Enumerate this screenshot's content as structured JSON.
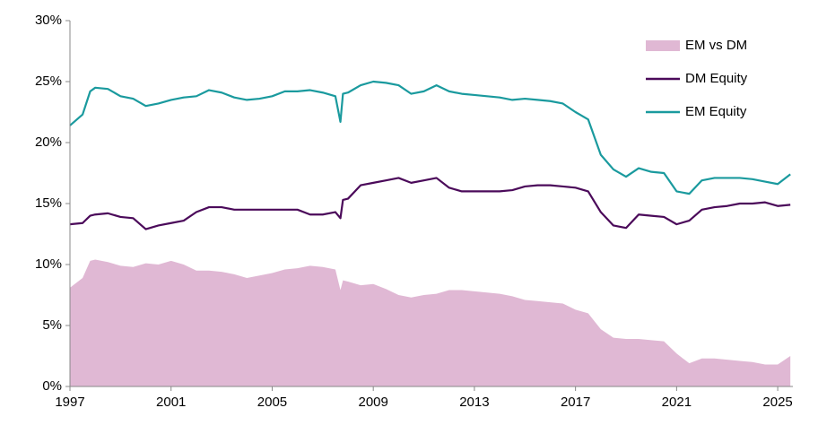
{
  "chart_data": {
    "type": "line",
    "x": [
      1997,
      1997.5,
      1997.8,
      1998,
      1998.5,
      1999,
      1999.5,
      2000,
      2000.5,
      2001,
      2001.5,
      2002,
      2002.5,
      2003,
      2003.5,
      2004,
      2004.5,
      2005,
      2005.5,
      2006,
      2006.5,
      2007,
      2007.5,
      2007.7,
      2007.8,
      2008,
      2008.5,
      2009,
      2009.5,
      2010,
      2010.5,
      2011,
      2011.5,
      2012,
      2012.5,
      2013,
      2013.5,
      2014,
      2014.5,
      2015,
      2015.5,
      2016,
      2016.5,
      2017,
      2017.5,
      2018,
      2018.5,
      2019,
      2019.5,
      2020,
      2020.5,
      2021,
      2021.5,
      2022,
      2022.5,
      2023,
      2023.5,
      2024,
      2024.5,
      2025,
      2025.5
    ],
    "series": [
      {
        "name": "EM vs DM",
        "type": "area",
        "color": "#e0b8d4",
        "values": [
          8.1,
          8.9,
          10.3,
          10.4,
          10.2,
          9.9,
          9.8,
          10.1,
          10.0,
          10.3,
          10.0,
          9.5,
          9.5,
          9.4,
          9.2,
          8.9,
          9.1,
          9.3,
          9.6,
          9.7,
          9.9,
          9.8,
          9.6,
          7.9,
          8.7,
          8.6,
          8.3,
          8.4,
          8.0,
          7.5,
          7.3,
          7.5,
          7.6,
          7.9,
          7.9,
          7.8,
          7.7,
          7.6,
          7.4,
          7.1,
          7.0,
          6.9,
          6.8,
          6.3,
          6.0,
          4.7,
          4.0,
          3.9,
          3.9,
          3.8,
          3.7,
          2.7,
          1.9,
          2.3,
          2.3,
          2.2,
          2.1,
          2.0,
          1.8,
          1.8,
          2.5
        ]
      },
      {
        "name": "DM Equity",
        "type": "line",
        "color": "#4b0a5a",
        "values": [
          13.3,
          13.4,
          14.0,
          14.1,
          14.2,
          13.9,
          13.8,
          12.9,
          13.2,
          13.4,
          13.6,
          14.3,
          14.7,
          14.7,
          14.5,
          14.5,
          14.5,
          14.5,
          14.5,
          14.5,
          14.1,
          14.1,
          14.3,
          13.8,
          15.3,
          15.4,
          16.5,
          16.7,
          16.9,
          17.1,
          16.7,
          16.9,
          17.1,
          16.3,
          16.0,
          16.0,
          16.0,
          16.0,
          16.1,
          16.4,
          16.5,
          16.5,
          16.4,
          16.3,
          16.0,
          14.3,
          13.2,
          13.0,
          14.1,
          14.0,
          13.9,
          13.3,
          13.6,
          14.5,
          14.7,
          14.8,
          15.0,
          15.0,
          15.1,
          14.8,
          14.9
        ]
      },
      {
        "name": "EM Equity",
        "type": "line",
        "color": "#1a9a9e",
        "values": [
          21.4,
          22.3,
          24.2,
          24.5,
          24.4,
          23.8,
          23.6,
          23.0,
          23.2,
          23.5,
          23.7,
          23.8,
          24.3,
          24.1,
          23.7,
          23.5,
          23.6,
          23.8,
          24.2,
          24.2,
          24.3,
          24.1,
          23.8,
          21.7,
          24.0,
          24.1,
          24.7,
          25.0,
          24.9,
          24.7,
          24.0,
          24.2,
          24.7,
          24.2,
          24.0,
          23.9,
          23.8,
          23.7,
          23.5,
          23.6,
          23.5,
          23.4,
          23.2,
          22.5,
          21.9,
          19.0,
          17.8,
          17.2,
          17.9,
          17.6,
          17.5,
          16.0,
          15.8,
          16.9,
          17.1,
          17.1,
          17.1,
          17.0,
          16.8,
          16.6,
          17.4
        ]
      }
    ],
    "xlim": [
      1997,
      2025.6
    ],
    "xticks": [
      1997,
      2001,
      2005,
      2009,
      2013,
      2017,
      2021,
      2025
    ],
    "ylim": [
      0,
      30
    ],
    "yticks": [
      {
        "value": 0,
        "label": "0%"
      },
      {
        "value": 5,
        "label": "5%"
      },
      {
        "value": 10,
        "label": "10%"
      },
      {
        "value": 15,
        "label": "15%"
      },
      {
        "value": 20,
        "label": "20%"
      },
      {
        "value": 25,
        "label": "25%"
      },
      {
        "value": 30,
        "label": "30%"
      }
    ],
    "grid": false,
    "legend": "upper right"
  }
}
